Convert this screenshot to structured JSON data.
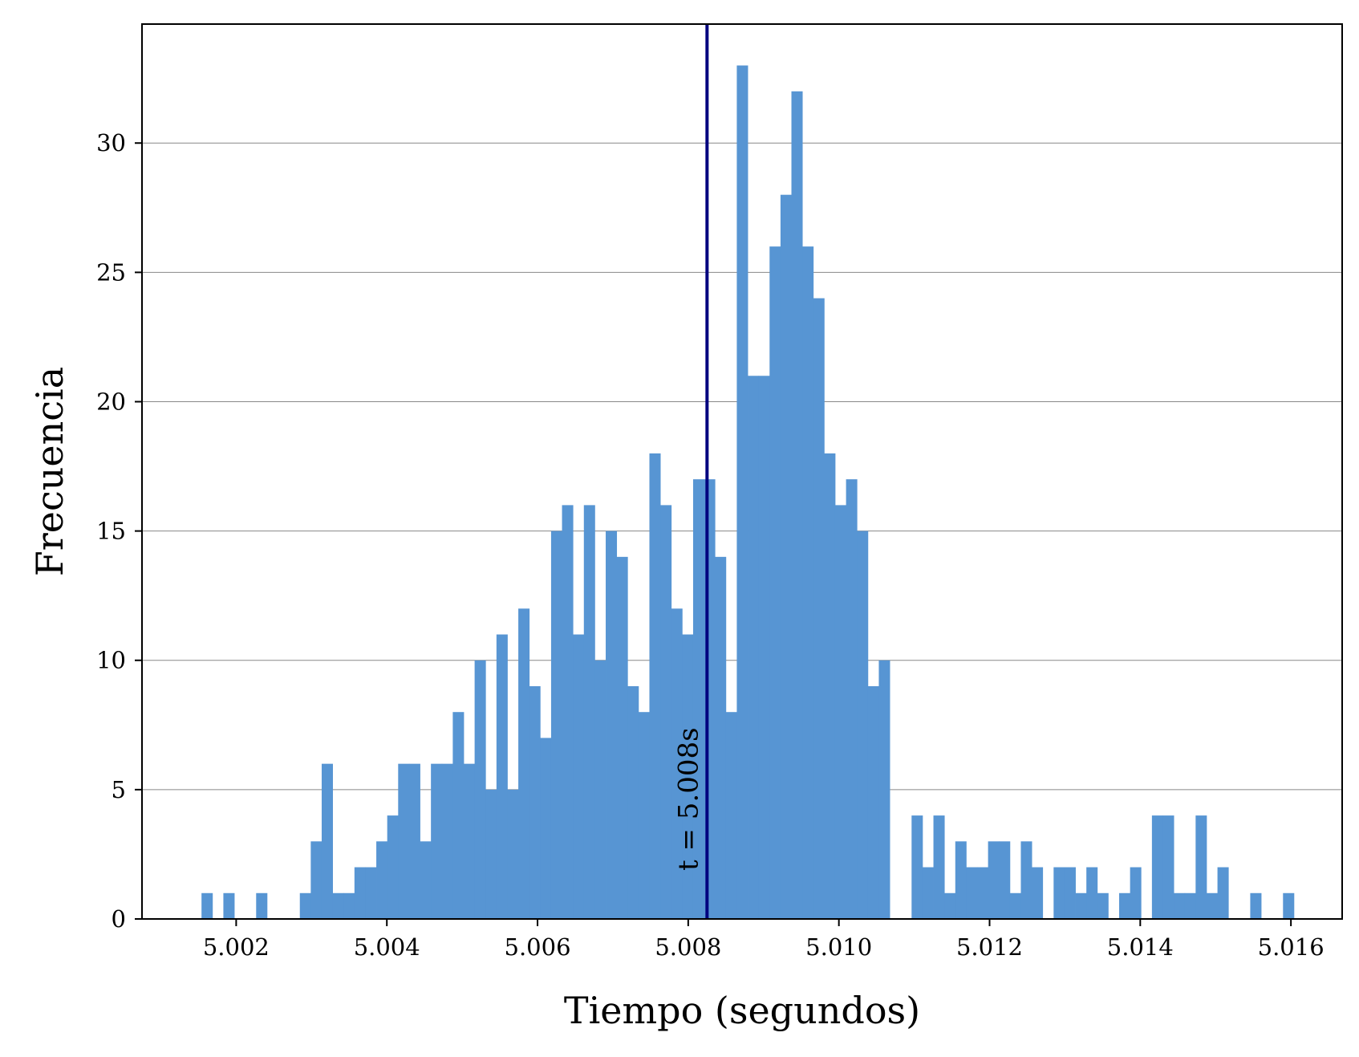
{
  "chart_data": {
    "type": "bar",
    "subtype": "histogram",
    "xlabel": "Tiempo (segundos)",
    "ylabel": "Frecuencia",
    "xlim": [
      5.00075,
      5.01668
    ],
    "ylim": [
      0,
      34.6
    ],
    "xticks": [
      5.002,
      5.004,
      5.006,
      5.008,
      5.01,
      5.012,
      5.014,
      5.016
    ],
    "xtick_labels": [
      "5.002",
      "5.004",
      "5.006",
      "5.008",
      "5.010",
      "5.012",
      "5.014",
      "5.016"
    ],
    "yticks": [
      0,
      5,
      10,
      15,
      20,
      25,
      30
    ],
    "ytick_labels": [
      "0",
      "5",
      "10",
      "15",
      "20",
      "25",
      "30"
    ],
    "grid": "horizontal",
    "bar_color": "#5795d3",
    "bin_start": 5.00154,
    "bin_width": 0.000145,
    "counts": [
      1,
      0,
      1,
      0,
      0,
      1,
      0,
      0,
      0,
      1,
      3,
      6,
      1,
      1,
      2,
      2,
      3,
      4,
      6,
      6,
      3,
      6,
      6,
      8,
      6,
      10,
      5,
      11,
      5,
      12,
      9,
      7,
      15,
      16,
      11,
      16,
      10,
      15,
      14,
      9,
      8,
      18,
      16,
      12,
      11,
      17,
      17,
      14,
      8,
      33,
      21,
      21,
      26,
      28,
      32,
      26,
      24,
      18,
      16,
      17,
      15,
      9,
      10,
      0,
      0,
      4,
      2,
      4,
      1,
      3,
      2,
      2,
      3,
      3,
      1,
      3,
      2,
      0,
      2,
      2,
      1,
      2,
      1,
      0,
      1,
      2,
      0,
      4,
      4,
      1,
      1,
      4,
      1,
      2,
      0,
      0,
      1,
      0,
      0,
      1
    ],
    "vline": {
      "x": 5.00825,
      "color": "#00007f",
      "label": "t = 5.008s"
    }
  }
}
